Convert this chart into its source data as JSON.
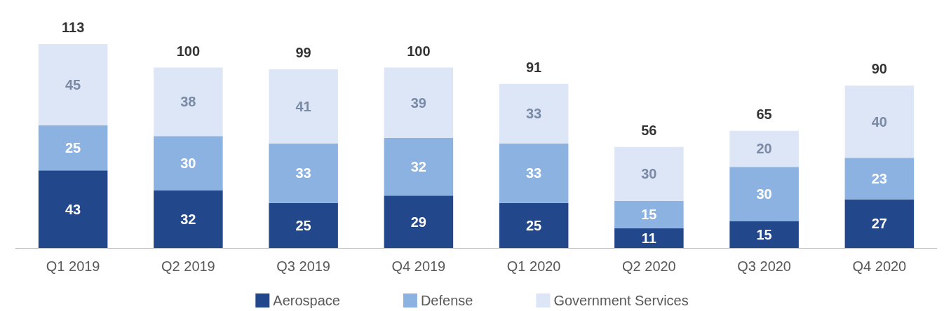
{
  "chart_data": {
    "type": "bar",
    "stacked": true,
    "categories": [
      "Q1 2019",
      "Q2 2019",
      "Q3 2019",
      "Q4 2019",
      "Q1 2020",
      "Q2 2020",
      "Q3 2020",
      "Q4 2020"
    ],
    "series": [
      {
        "name": "Aerospace",
        "color": "#22488b",
        "values": [
          43,
          32,
          25,
          29,
          25,
          11,
          15,
          27
        ]
      },
      {
        "name": "Defense",
        "color": "#8cb2e2",
        "values": [
          25,
          30,
          33,
          32,
          33,
          15,
          30,
          23
        ]
      },
      {
        "name": "Government Services",
        "color": "#dce6f6",
        "values": [
          45,
          38,
          41,
          39,
          33,
          30,
          20,
          40
        ]
      }
    ],
    "totals": [
      "113",
      "100",
      "99",
      "100",
      "91",
      "56",
      "65",
      "90"
    ],
    "data_labels": true,
    "legend": "bottom",
    "tick_labels": "x"
  }
}
